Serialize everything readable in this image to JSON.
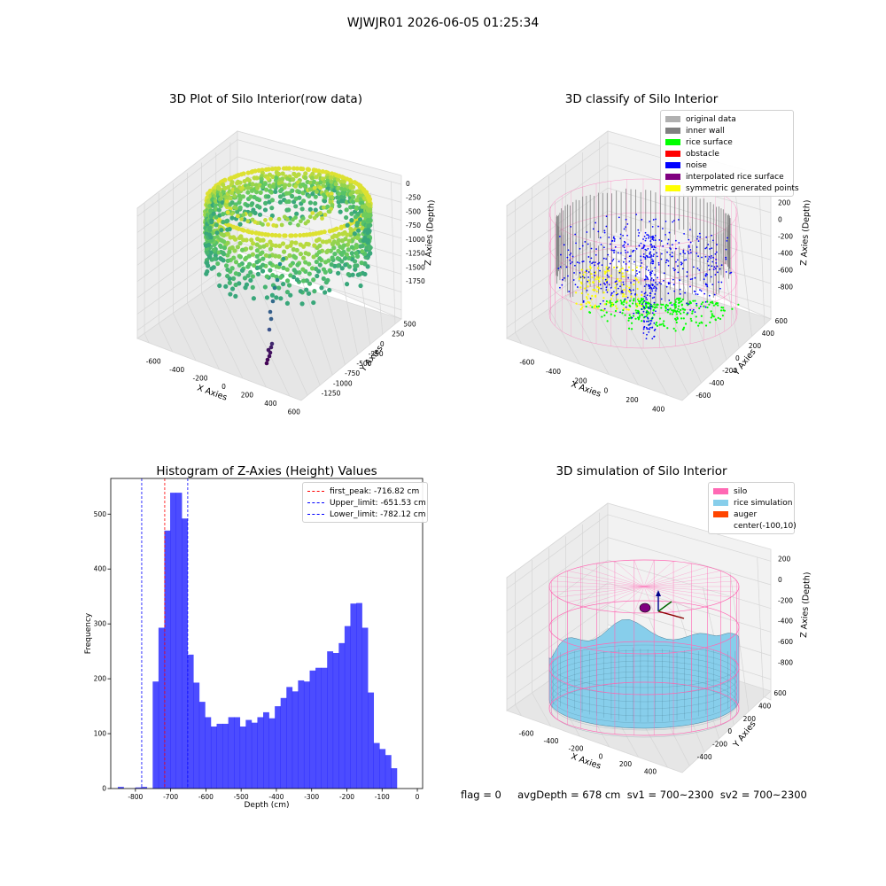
{
  "figure": {
    "suptitle": "WJWJR01 2026-06-05 01:25:34",
    "status_line": "flag = 0     avgDepth = 678 cm  sv1 = 700~2300  sv2 = 700~2300"
  },
  "chart_data": [
    {
      "id": "raw",
      "type": "scatter",
      "title": "3D Plot of Silo Interior(row data)",
      "xlabel": "X Axies",
      "ylabel": "Y Axies",
      "zlabel": "Z Axies (Depth)",
      "x_ticks": [
        "-600",
        "-400",
        "-200",
        "0",
        "200",
        "400",
        "600"
      ],
      "y_ticks": [
        "-1250",
        "-1000",
        "-750",
        "-500",
        "-250",
        "0",
        "250",
        "500"
      ],
      "z_ticks": [
        "-1750",
        "-1500",
        "-1250",
        "-1000",
        "-750",
        "-500",
        "-250",
        "0"
      ],
      "xlim": [
        -700,
        650
      ],
      "ylim": [
        -1300,
        650
      ],
      "zlim": [
        -1900,
        100
      ],
      "colormap": "viridis",
      "description_points": "ring of scan points near the surface plus a vertical trail of points down to about -1850"
    },
    {
      "id": "classify",
      "type": "scatter",
      "title": "3D classify of Silo Interior",
      "xlabel": "X Axies",
      "ylabel": "Y Axies",
      "zlabel": "Z Axies (Depth)",
      "x_ticks": [
        "-600",
        "-400",
        "-200",
        "0",
        "200",
        "400"
      ],
      "y_ticks": [
        "-600",
        "-400",
        "-200",
        "0",
        "200",
        "400",
        "600"
      ],
      "z_ticks": [
        "-800",
        "-600",
        "-400",
        "-200",
        "0",
        "200"
      ],
      "xlim": [
        -700,
        550
      ],
      "ylim": [
        -650,
        650
      ],
      "zlim": [
        -900,
        250
      ],
      "legend": [
        {
          "label": "original data",
          "color": "#b0b0b0"
        },
        {
          "label": "inner wall",
          "color": "#808080"
        },
        {
          "label": "rice surface",
          "color": "#00ff00"
        },
        {
          "label": "obstacle",
          "color": "#ff0000"
        },
        {
          "label": "noise",
          "color": "#0000ff"
        },
        {
          "label": "interpolated rice surface",
          "color": "#800080"
        },
        {
          "label": "symmetric generated points",
          "color": "#ffff00"
        }
      ],
      "silo_wire_color": "#ff69b4"
    },
    {
      "id": "hist",
      "type": "bar",
      "title": "Histogram of Z-Axies (Height) Values",
      "xlabel": "Depth (cm)",
      "ylabel": "Frequency",
      "xlim": [
        -870,
        15
      ],
      "ylim": [
        0,
        565
      ],
      "x_ticks": [
        -800,
        -700,
        -600,
        -500,
        -400,
        -300,
        -200,
        -100,
        0
      ],
      "y_ticks": [
        0,
        100,
        200,
        300,
        400,
        500
      ],
      "bar_color": "#0000ff",
      "bin_start": -850,
      "bin_width": 16.5,
      "values": [
        3,
        0,
        0,
        2,
        3,
        0,
        195,
        293,
        470,
        539,
        539,
        492,
        244,
        193,
        158,
        130,
        113,
        118,
        118,
        130,
        130,
        113,
        125,
        120,
        130,
        139,
        128,
        150,
        165,
        185,
        177,
        197,
        195,
        215,
        220,
        220,
        250,
        247,
        265,
        296,
        337,
        338,
        293,
        175,
        83,
        72,
        61,
        37
      ],
      "vlines": [
        {
          "label": "first_peak: -716.82 cm",
          "x": -716.82,
          "color": "#ff0000"
        },
        {
          "label": "Upper_limit: -651.53 cm",
          "x": -651.53,
          "color": "#0000ff"
        },
        {
          "label": "Lower_limit: -782.12 cm",
          "x": -782.12,
          "color": "#0000ff"
        }
      ]
    },
    {
      "id": "sim",
      "type": "scatter",
      "title": "3D simulation of Silo Interior",
      "xlabel": "X Axies",
      "ylabel": "Y Axies",
      "zlabel": "Z Axies (Depth)",
      "x_ticks": [
        "-600",
        "-400",
        "-200",
        "0",
        "200",
        "400"
      ],
      "y_ticks": [
        "-400",
        "-200",
        "0",
        "200",
        "400",
        "600"
      ],
      "z_ticks": [
        "-800",
        "-600",
        "-400",
        "-200",
        "0",
        "200"
      ],
      "xlim": [
        -700,
        550
      ],
      "ylim": [
        -650,
        650
      ],
      "zlim": [
        -900,
        350
      ],
      "legend": [
        {
          "label": "silo",
          "color": "#ff69b4"
        },
        {
          "label": "rice simulation",
          "color": "#87ceeb"
        },
        {
          "label": "auger",
          "color": "#ff4500"
        },
        {
          "label": "center(-100,10)",
          "color": ""
        }
      ]
    }
  ]
}
